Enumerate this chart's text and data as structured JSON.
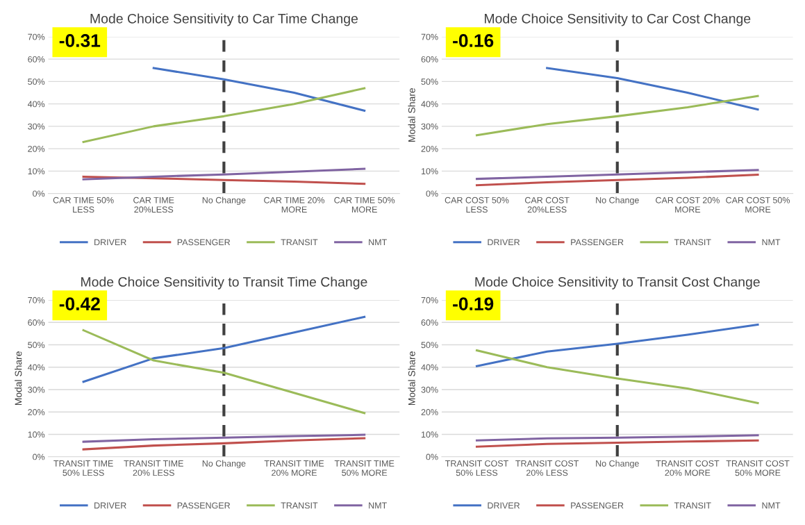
{
  "chart_data": [
    {
      "type": "line",
      "title": "Mode Choice Sensitivity to Car Time Change",
      "categories": [
        "CAR TIME 50%\nLESS",
        "CAR TIME\n20%LESS",
        "No Change",
        "CAR TIME 20%\nMORE",
        "CAR TIME 50%\nMORE"
      ],
      "series": [
        {
          "name": "DRIVER",
          "color": "#4472c4",
          "values": [
            null,
            56,
            51,
            45,
            37
          ]
        },
        {
          "name": "PASSENGER",
          "color": "#c0504d",
          "values": [
            7.5,
            6.8,
            6,
            5.3,
            4.3
          ]
        },
        {
          "name": "TRANSIT",
          "color": "#9bbb59",
          "values": [
            23,
            30,
            34.5,
            40,
            47
          ]
        },
        {
          "name": "NMT",
          "color": "#8064a2",
          "values": [
            6.3,
            7.5,
            8.5,
            9.7,
            11
          ]
        }
      ],
      "ylim": [
        0,
        70
      ],
      "yticks": [
        {
          "value": 0,
          "label": "0%"
        },
        {
          "value": 10,
          "label": "10%"
        },
        {
          "value": 20,
          "label": "20%"
        },
        {
          "value": 30,
          "label": "30%"
        },
        {
          "value": 40,
          "label": "40%"
        },
        {
          "value": 50,
          "label": "50%"
        },
        {
          "value": 60,
          "label": "60%"
        },
        {
          "value": 70,
          "label": "70%"
        }
      ],
      "ref_lines": [
        {
          "axis": "x",
          "value": "No Change",
          "color": "#404040",
          "line_style": "dashed"
        }
      ],
      "annotations": [
        "-0.31"
      ],
      "grid": "y",
      "legend": "bottom",
      "marker": "none",
      "line_style": "solid"
    },
    {
      "type": "line",
      "title": "Mode Choice Sensitivity to Car Cost Change",
      "ylabel": "Modal Share",
      "categories": [
        "CAR COST 50%\nLESS",
        "CAR COST\n20%LESS",
        "No Change",
        "CAR COST 20%\nMORE",
        "CAR COST 50%\nMORE"
      ],
      "series": [
        {
          "name": "DRIVER",
          "color": "#4472c4",
          "values": [
            null,
            56,
            51.5,
            45,
            37.5
          ]
        },
        {
          "name": "PASSENGER",
          "color": "#c0504d",
          "values": [
            3.7,
            5,
            6,
            7,
            8.4
          ]
        },
        {
          "name": "TRANSIT",
          "color": "#9bbb59",
          "values": [
            26,
            31,
            34.5,
            38.5,
            43.5
          ]
        },
        {
          "name": "NMT",
          "color": "#8064a2",
          "values": [
            6.5,
            7.5,
            8.5,
            9.5,
            10.5
          ]
        }
      ],
      "ylim": [
        0,
        70
      ],
      "yticks": [
        {
          "value": 0,
          "label": "0%"
        },
        {
          "value": 10,
          "label": "10%"
        },
        {
          "value": 20,
          "label": "20%"
        },
        {
          "value": 30,
          "label": "30%"
        },
        {
          "value": 40,
          "label": "40%"
        },
        {
          "value": 50,
          "label": "50%"
        },
        {
          "value": 60,
          "label": "60%"
        },
        {
          "value": 70,
          "label": "70%"
        }
      ],
      "ref_lines": [
        {
          "axis": "x",
          "value": "No Change",
          "color": "#404040",
          "line_style": "dashed"
        }
      ],
      "annotations": [
        "-0.16"
      ],
      "grid": "y",
      "legend": "bottom",
      "marker": "none",
      "line_style": "solid"
    },
    {
      "type": "line",
      "title": "Mode Choice Sensitivity to Transit Time Change",
      "ylabel": "Modal Share",
      "categories": [
        "TRANSIT TIME\n50% LESS",
        "TRANSIT TIME\n20% LESS",
        "No Change",
        "TRANSIT TIME\n20% MORE",
        "TRANSIT TIME\n50% MORE"
      ],
      "series": [
        {
          "name": "DRIVER",
          "color": "#4472c4",
          "values": [
            33.5,
            44,
            48.5,
            55.5,
            62.5
          ]
        },
        {
          "name": "PASSENGER",
          "color": "#c0504d",
          "values": [
            3.3,
            5,
            6,
            7.3,
            8.3
          ]
        },
        {
          "name": "TRANSIT",
          "color": "#9bbb59",
          "values": [
            56.5,
            43,
            37.5,
            28.5,
            19.5
          ]
        },
        {
          "name": "NMT",
          "color": "#8064a2",
          "values": [
            6.7,
            7.8,
            8.5,
            9.2,
            9.8
          ]
        }
      ],
      "ylim": [
        0,
        70
      ],
      "yticks": [
        {
          "value": 0,
          "label": "0%"
        },
        {
          "value": 10,
          "label": "10%"
        },
        {
          "value": 20,
          "label": "20%"
        },
        {
          "value": 30,
          "label": "30%"
        },
        {
          "value": 40,
          "label": "40%"
        },
        {
          "value": 50,
          "label": "50%"
        },
        {
          "value": 60,
          "label": "60%"
        },
        {
          "value": 70,
          "label": "70%"
        }
      ],
      "ref_lines": [
        {
          "axis": "x",
          "value": "No Change",
          "color": "#404040",
          "line_style": "dashed"
        }
      ],
      "annotations": [
        "-0.42"
      ],
      "grid": "y",
      "legend": "bottom",
      "marker": "none",
      "line_style": "solid"
    },
    {
      "type": "line",
      "title": "Mode Choice Sensitivity to Transit Cost Change",
      "ylabel": "Modal Share",
      "categories": [
        "TRANSIT COST\n50% LESS",
        "TRANSIT COST\n20% LESS",
        "No Change",
        "TRANSIT COST\n20% MORE",
        "TRANSIT COST\n50% MORE"
      ],
      "series": [
        {
          "name": "DRIVER",
          "color": "#4472c4",
          "values": [
            40.5,
            47,
            50.5,
            54.5,
            59
          ]
        },
        {
          "name": "PASSENGER",
          "color": "#c0504d",
          "values": [
            4.5,
            5.7,
            6.3,
            6.8,
            7.3
          ]
        },
        {
          "name": "TRANSIT",
          "color": "#9bbb59",
          "values": [
            47.5,
            40,
            35,
            30.5,
            24
          ]
        },
        {
          "name": "NMT",
          "color": "#8064a2",
          "values": [
            7.3,
            8.2,
            8.5,
            9,
            9.6
          ]
        }
      ],
      "ylim": [
        0,
        70
      ],
      "yticks": [
        {
          "value": 0,
          "label": "0%"
        },
        {
          "value": 10,
          "label": "10%"
        },
        {
          "value": 20,
          "label": "20%"
        },
        {
          "value": 30,
          "label": "30%"
        },
        {
          "value": 40,
          "label": "40%"
        },
        {
          "value": 50,
          "label": "50%"
        },
        {
          "value": 60,
          "label": "60%"
        },
        {
          "value": 70,
          "label": "70%"
        }
      ],
      "ref_lines": [
        {
          "axis": "x",
          "value": "No Change",
          "color": "#404040",
          "line_style": "dashed"
        }
      ],
      "annotations": [
        "-0.19"
      ],
      "grid": "y",
      "legend": "bottom",
      "marker": "none",
      "line_style": "solid"
    }
  ]
}
